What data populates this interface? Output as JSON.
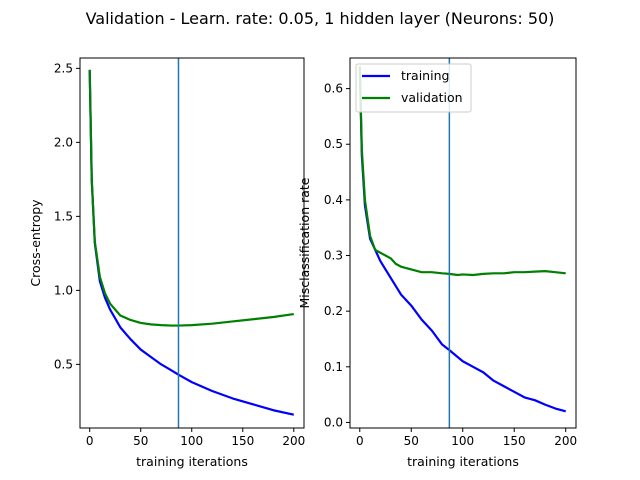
{
  "title": "Validation - Learn. rate: 0.05, 1 hidden layer (Neurons: 50)",
  "chart_data": [
    {
      "type": "line",
      "xlabel": "training iterations",
      "ylabel": "Cross-entropy",
      "xlim": [
        -9.5,
        210
      ],
      "ylim": [
        0.07,
        2.57
      ],
      "xticks": [
        0,
        50,
        100,
        150,
        200
      ],
      "xtick_labels": [
        "0",
        "50",
        "100",
        "150",
        "200"
      ],
      "yticks": [
        0.5,
        1.0,
        1.5,
        2.0,
        2.5
      ],
      "ytick_labels": [
        "0.5",
        "1.0",
        "1.5",
        "2.0",
        "2.5"
      ],
      "vline_x": 87,
      "vline_color": "#1f77b4",
      "grid": false,
      "legend": null,
      "series": [
        {
          "color": "#0000ff",
          "x": [
            0,
            2,
            5,
            10,
            15,
            20,
            30,
            40,
            50,
            60,
            70,
            80,
            87,
            100,
            120,
            140,
            160,
            180,
            200
          ],
          "values": [
            2.49,
            1.75,
            1.32,
            1.06,
            0.95,
            0.87,
            0.75,
            0.67,
            0.6,
            0.55,
            0.5,
            0.46,
            0.43,
            0.38,
            0.32,
            0.27,
            0.23,
            0.19,
            0.16
          ]
        },
        {
          "color": "#008000",
          "x": [
            0,
            2,
            5,
            10,
            15,
            20,
            30,
            40,
            50,
            60,
            70,
            80,
            87,
            100,
            120,
            140,
            160,
            180,
            200
          ],
          "values": [
            2.49,
            1.74,
            1.33,
            1.09,
            0.98,
            0.91,
            0.83,
            0.8,
            0.78,
            0.77,
            0.765,
            0.762,
            0.762,
            0.765,
            0.775,
            0.79,
            0.805,
            0.82,
            0.84
          ]
        }
      ]
    },
    {
      "type": "line",
      "xlabel": "training iterations",
      "ylabel": "Misclassification rate",
      "xlim": [
        -9.5,
        210
      ],
      "ylim": [
        -0.01,
        0.655
      ],
      "xticks": [
        0,
        50,
        100,
        150,
        200
      ],
      "xtick_labels": [
        "0",
        "50",
        "100",
        "150",
        "200"
      ],
      "yticks": [
        0.0,
        0.1,
        0.2,
        0.3,
        0.4,
        0.5,
        0.6
      ],
      "ytick_labels": [
        "0.0",
        "0.1",
        "0.2",
        "0.3",
        "0.4",
        "0.5",
        "0.6"
      ],
      "vline_x": 87,
      "vline_color": "#1f77b4",
      "grid": false,
      "legend": "top-left",
      "series": [
        {
          "name": "training",
          "color": "#0000ff",
          "x": [
            0,
            2,
            5,
            10,
            15,
            20,
            30,
            40,
            50,
            60,
            70,
            80,
            87,
            100,
            110,
            120,
            130,
            140,
            150,
            160,
            170,
            180,
            190,
            200
          ],
          "values": [
            0.64,
            0.48,
            0.39,
            0.33,
            0.31,
            0.29,
            0.26,
            0.23,
            0.21,
            0.185,
            0.165,
            0.14,
            0.13,
            0.11,
            0.1,
            0.09,
            0.075,
            0.065,
            0.055,
            0.045,
            0.04,
            0.032,
            0.025,
            0.02
          ]
        },
        {
          "name": "validation",
          "color": "#008000",
          "x": [
            0,
            2,
            5,
            10,
            15,
            20,
            30,
            35,
            40,
            50,
            60,
            70,
            80,
            87,
            95,
            100,
            110,
            120,
            130,
            140,
            150,
            160,
            170,
            180,
            190,
            200
          ],
          "values": [
            0.64,
            0.49,
            0.4,
            0.335,
            0.31,
            0.305,
            0.295,
            0.285,
            0.28,
            0.275,
            0.27,
            0.27,
            0.268,
            0.267,
            0.265,
            0.266,
            0.265,
            0.267,
            0.268,
            0.268,
            0.27,
            0.27,
            0.271,
            0.272,
            0.27,
            0.268
          ]
        }
      ]
    }
  ]
}
